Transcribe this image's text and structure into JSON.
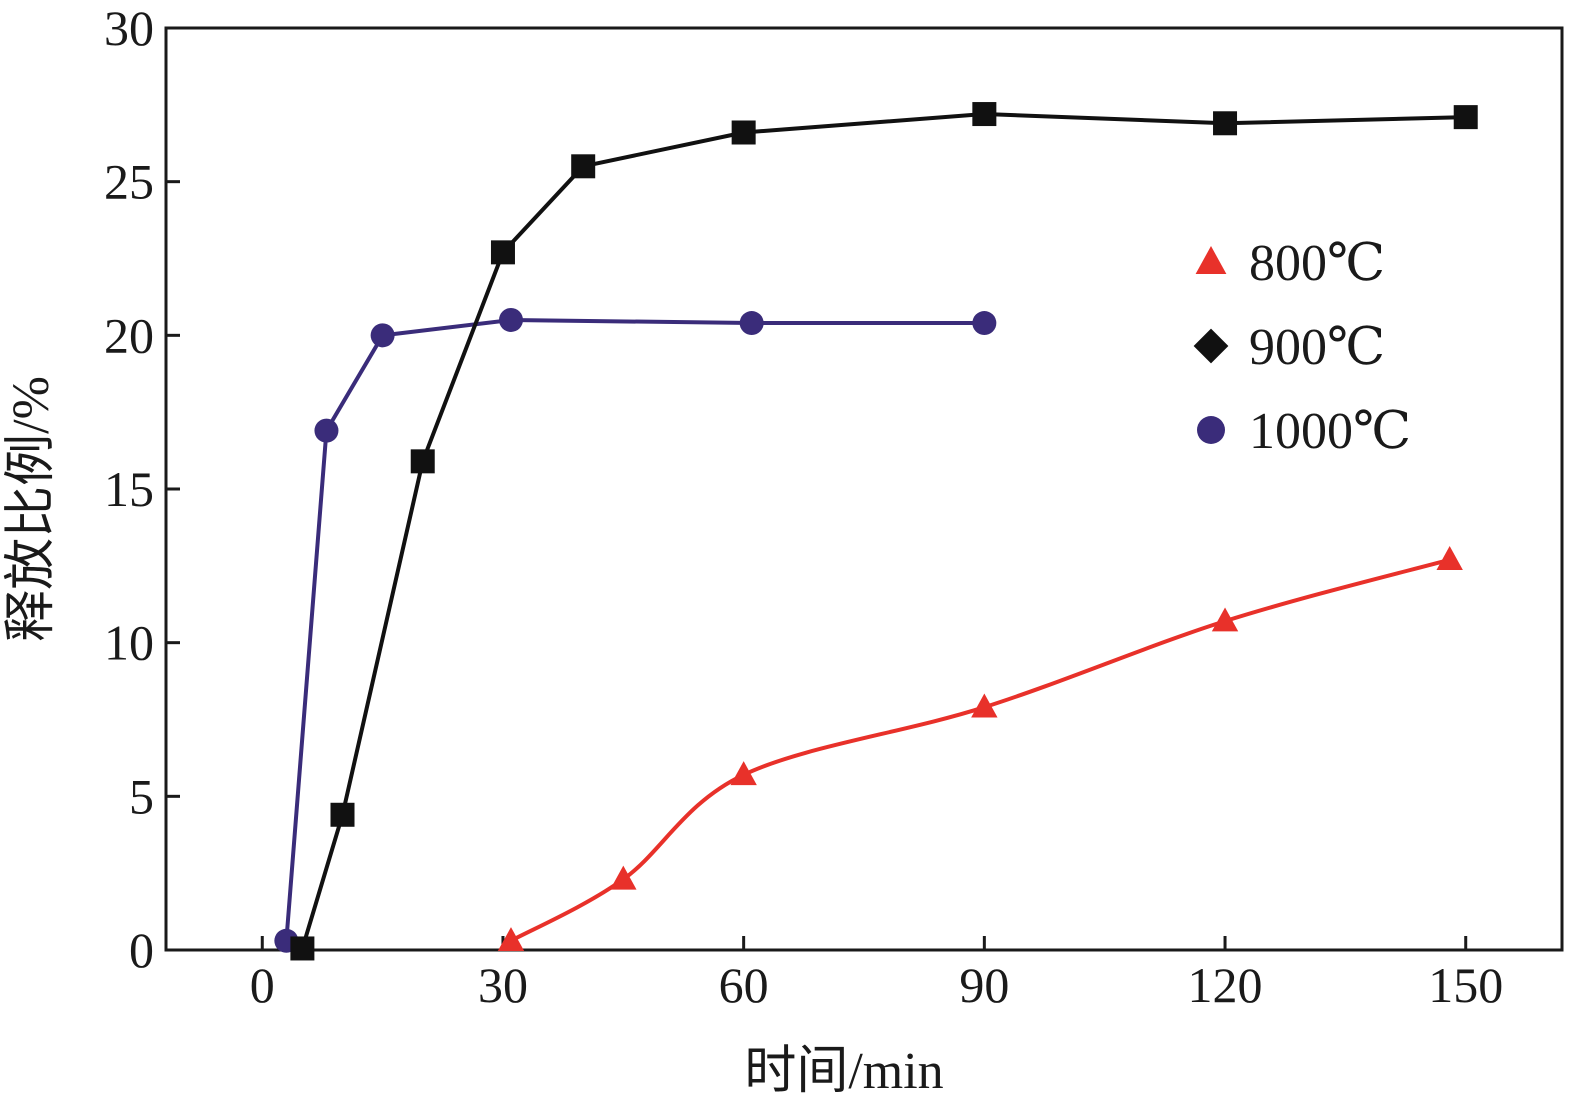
{
  "chart_data": {
    "type": "line",
    "xlabel": "时间/min",
    "ylabel": "释放比例/%",
    "xlim": [
      -12,
      162
    ],
    "ylim": [
      0,
      30
    ],
    "xticks": [
      0,
      30,
      60,
      90,
      120,
      150
    ],
    "yticks": [
      0,
      5,
      10,
      15,
      20,
      25,
      30
    ],
    "grid": false,
    "legend_position": "right, upper-middle",
    "series": [
      {
        "name": "800℃",
        "color": "#e8312a",
        "marker": "triangle",
        "smooth": true,
        "x": [
          31,
          45,
          60,
          90,
          120,
          148
        ],
        "y": [
          0.3,
          2.3,
          5.7,
          7.9,
          10.7,
          12.7
        ]
      },
      {
        "name": "900℃",
        "color": "#111111",
        "marker": "square",
        "legend_marker": "diamond",
        "smooth": false,
        "x": [
          5,
          10,
          20,
          30,
          40,
          60,
          90,
          120,
          150
        ],
        "y": [
          0.05,
          4.4,
          15.9,
          22.7,
          25.5,
          26.6,
          27.2,
          26.9,
          27.1
        ]
      },
      {
        "name": "1000℃",
        "color": "#3a2c7a",
        "marker": "circle",
        "smooth": false,
        "x": [
          3,
          8,
          15,
          31,
          61,
          90
        ],
        "y": [
          0.3,
          16.9,
          20.0,
          20.5,
          20.4,
          20.4
        ]
      }
    ]
  }
}
